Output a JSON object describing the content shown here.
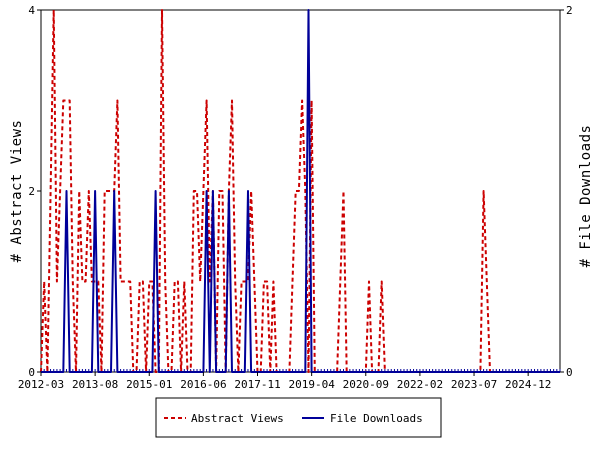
{
  "chart_data": {
    "type": "line",
    "title": "",
    "ylabel_left": "# Abstract Views",
    "ylabel_right": "# File Downloads",
    "x_ticks": [
      "2012-03",
      "2013-08",
      "2015-01",
      "2016-06",
      "2017-11",
      "2019-04",
      "2020-09",
      "2022-02",
      "2023-07",
      "2024-12"
    ],
    "x_range": [
      "2012-03",
      "2025-10"
    ],
    "ylim_left": [
      0,
      4
    ],
    "ylim_right": [
      0,
      2
    ],
    "yticks_left": [
      "0",
      "2",
      "4"
    ],
    "yticks_right": [
      "0",
      "2"
    ],
    "grid": false,
    "legend_position": "bottom-center",
    "series": [
      {
        "name": "Abstract Views",
        "axis": "left",
        "color": "#cc0000",
        "style": "dashed",
        "values": [
          [
            "2012-03",
            0
          ],
          [
            "2012-04",
            1
          ],
          [
            "2012-05",
            0
          ],
          [
            "2012-06",
            2
          ],
          [
            "2012-07",
            4
          ],
          [
            "2012-08",
            1
          ],
          [
            "2012-09",
            2
          ],
          [
            "2012-10",
            3
          ],
          [
            "2012-11",
            3
          ],
          [
            "2012-12",
            3
          ],
          [
            "2013-01",
            1
          ],
          [
            "2013-02",
            0
          ],
          [
            "2013-03",
            2
          ],
          [
            "2013-04",
            1
          ],
          [
            "2013-05",
            1
          ],
          [
            "2013-06",
            2
          ],
          [
            "2013-07",
            1
          ],
          [
            "2013-08",
            1
          ],
          [
            "2013-09",
            1
          ],
          [
            "2013-10",
            0
          ],
          [
            "2013-11",
            2
          ],
          [
            "2013-12",
            2
          ],
          [
            "2014-01",
            2
          ],
          [
            "2014-02",
            2
          ],
          [
            "2014-03",
            3
          ],
          [
            "2014-04",
            1
          ],
          [
            "2014-05",
            1
          ],
          [
            "2014-06",
            1
          ],
          [
            "2014-07",
            1
          ],
          [
            "2014-08",
            0
          ],
          [
            "2014-09",
            0
          ],
          [
            "2014-10",
            1
          ],
          [
            "2014-11",
            1
          ],
          [
            "2014-12",
            0
          ],
          [
            "2015-01",
            1
          ],
          [
            "2015-02",
            1
          ],
          [
            "2015-03",
            0
          ],
          [
            "2015-04",
            0
          ],
          [
            "2015-05",
            4
          ],
          [
            "2015-06",
            1
          ],
          [
            "2015-07",
            0
          ],
          [
            "2015-08",
            0
          ],
          [
            "2015-09",
            1
          ],
          [
            "2015-10",
            1
          ],
          [
            "2015-11",
            0
          ],
          [
            "2015-12",
            1
          ],
          [
            "2016-01",
            0
          ],
          [
            "2016-02",
            0
          ],
          [
            "2016-03",
            2
          ],
          [
            "2016-04",
            2
          ],
          [
            "2016-05",
            1
          ],
          [
            "2016-06",
            2
          ],
          [
            "2016-07",
            3
          ],
          [
            "2016-08",
            1
          ],
          [
            "2016-09",
            2
          ],
          [
            "2016-10",
            0
          ],
          [
            "2016-11",
            2
          ],
          [
            "2016-12",
            2
          ],
          [
            "2017-01",
            0
          ],
          [
            "2017-02",
            2
          ],
          [
            "2017-03",
            3
          ],
          [
            "2017-04",
            1
          ],
          [
            "2017-05",
            0
          ],
          [
            "2017-06",
            1
          ],
          [
            "2017-07",
            1
          ],
          [
            "2017-08",
            1
          ],
          [
            "2017-09",
            2
          ],
          [
            "2017-10",
            1
          ],
          [
            "2017-11",
            0
          ],
          [
            "2017-12",
            0
          ],
          [
            "2018-01",
            1
          ],
          [
            "2018-02",
            1
          ],
          [
            "2018-03",
            0
          ],
          [
            "2018-04",
            1
          ],
          [
            "2018-05",
            0
          ],
          [
            "2018-06",
            0
          ],
          [
            "2018-07",
            0
          ],
          [
            "2018-08",
            0
          ],
          [
            "2018-09",
            0
          ],
          [
            "2018-10",
            1
          ],
          [
            "2018-11",
            2
          ],
          [
            "2018-12",
            2
          ],
          [
            "2019-01",
            3
          ],
          [
            "2019-02",
            2
          ],
          [
            "2019-03",
            0
          ],
          [
            "2019-04",
            3
          ],
          [
            "2019-05",
            0
          ],
          [
            "2019-06",
            0
          ],
          [
            "2019-07",
            0
          ],
          [
            "2019-08",
            0
          ],
          [
            "2019-09",
            0
          ],
          [
            "2019-10",
            0
          ],
          [
            "2019-11",
            0
          ],
          [
            "2019-12",
            0
          ],
          [
            "2020-01",
            1
          ],
          [
            "2020-02",
            2
          ],
          [
            "2020-03",
            0
          ],
          [
            "2020-04",
            0
          ],
          [
            "2020-05",
            0
          ],
          [
            "2020-06",
            0
          ],
          [
            "2020-07",
            0
          ],
          [
            "2020-08",
            0
          ],
          [
            "2020-09",
            0
          ],
          [
            "2020-10",
            1
          ],
          [
            "2020-11",
            0
          ],
          [
            "2020-12",
            0
          ],
          [
            "2021-01",
            0
          ],
          [
            "2021-02",
            1
          ],
          [
            "2021-03",
            0
          ],
          [
            "2021-04",
            0
          ],
          [
            "2021-05",
            0
          ],
          [
            "2021-06",
            0
          ],
          [
            "2021-07",
            0
          ],
          [
            "2021-08",
            0
          ],
          [
            "2021-09",
            0
          ],
          [
            "2021-10",
            0
          ],
          [
            "2021-11",
            0
          ],
          [
            "2021-12",
            0
          ],
          [
            "2022-01",
            0
          ],
          [
            "2022-02",
            0
          ],
          [
            "2022-03",
            0
          ],
          [
            "2022-04",
            0
          ],
          [
            "2022-05",
            0
          ],
          [
            "2022-06",
            0
          ],
          [
            "2022-07",
            0
          ],
          [
            "2022-08",
            0
          ],
          [
            "2022-09",
            0
          ],
          [
            "2022-10",
            0
          ],
          [
            "2022-11",
            0
          ],
          [
            "2022-12",
            0
          ],
          [
            "2023-01",
            0
          ],
          [
            "2023-02",
            0
          ],
          [
            "2023-03",
            0
          ],
          [
            "2023-04",
            0
          ],
          [
            "2023-05",
            0
          ],
          [
            "2023-06",
            0
          ],
          [
            "2023-07",
            0
          ],
          [
            "2023-08",
            0
          ],
          [
            "2023-09",
            0
          ],
          [
            "2023-10",
            2
          ],
          [
            "2023-11",
            1
          ],
          [
            "2023-12",
            0
          ],
          [
            "2024-01",
            0
          ],
          [
            "2025-10",
            0
          ]
        ]
      },
      {
        "name": "File Downloads",
        "axis": "right",
        "color": "#000099",
        "style": "solid",
        "values": [
          [
            "2012-03",
            0
          ],
          [
            "2012-10",
            0
          ],
          [
            "2012-11",
            1
          ],
          [
            "2012-12",
            0
          ],
          [
            "2013-01",
            0
          ],
          [
            "2013-07",
            0
          ],
          [
            "2013-08",
            1
          ],
          [
            "2013-09",
            0
          ],
          [
            "2014-01",
            0
          ],
          [
            "2014-02",
            1
          ],
          [
            "2014-03",
            0
          ],
          [
            "2015-02",
            0
          ],
          [
            "2015-03",
            1
          ],
          [
            "2015-04",
            0
          ],
          [
            "2016-06",
            0
          ],
          [
            "2016-07",
            1
          ],
          [
            "2016-08",
            0
          ],
          [
            "2016-09",
            1
          ],
          [
            "2016-10",
            0
          ],
          [
            "2017-01",
            0
          ],
          [
            "2017-02",
            1
          ],
          [
            "2017-03",
            0
          ],
          [
            "2017-07",
            0
          ],
          [
            "2017-08",
            1
          ],
          [
            "2017-09",
            0
          ],
          [
            "2019-02",
            0
          ],
          [
            "2019-03",
            2
          ],
          [
            "2019-04",
            0
          ],
          [
            "2025-10",
            0
          ]
        ]
      }
    ]
  }
}
